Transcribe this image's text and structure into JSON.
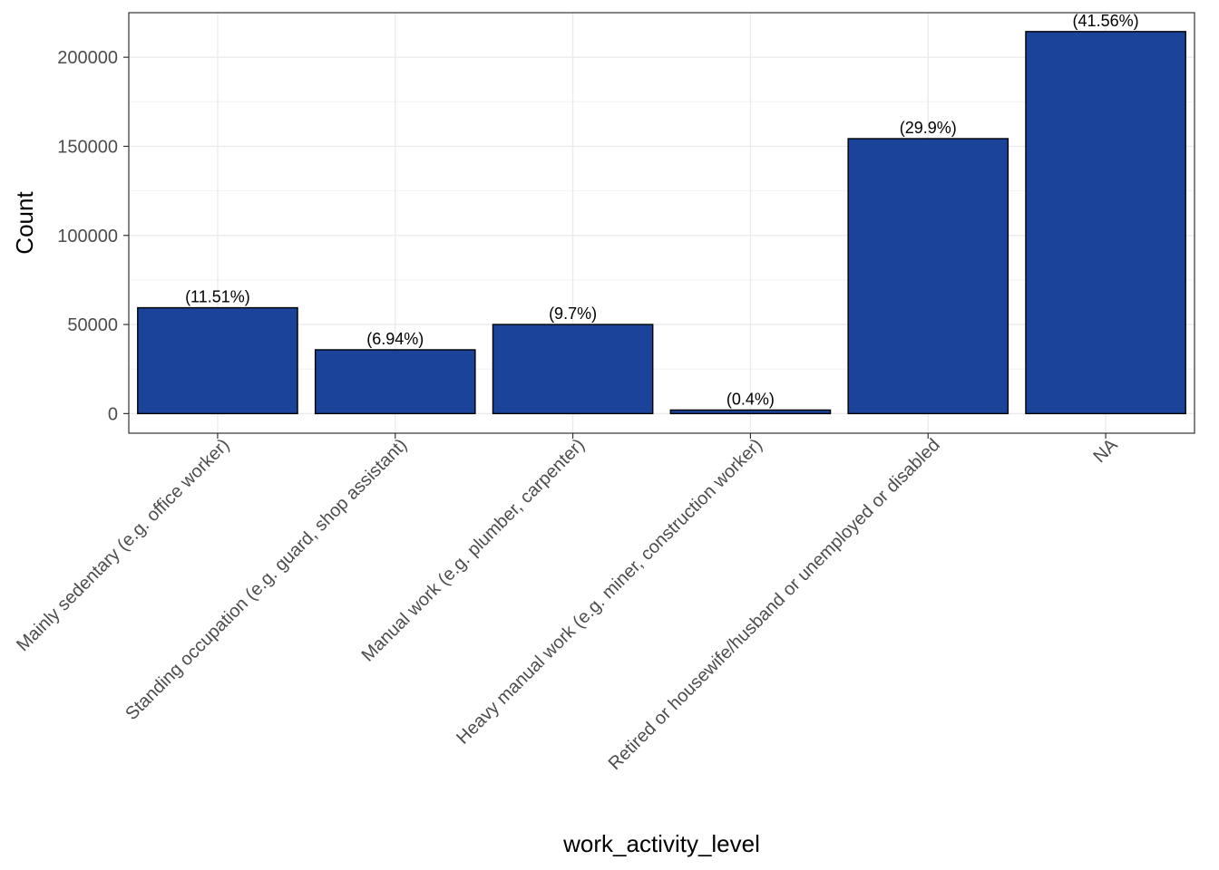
{
  "chart_data": {
    "type": "bar",
    "title": "",
    "xlabel": "work_activity_level",
    "ylabel": "Count",
    "categories": [
      "Mainly sedentary (e.g. office worker)",
      "Standing occupation (e.g. guard, shop assistant)",
      "Manual work (e.g. plumber, carpenter)",
      "Heavy manual work (e.g. miner, construction worker)",
      "Retired or housewife/husband or unemployed or disabled",
      "NA"
    ],
    "values": [
      59400,
      35800,
      50000,
      2000,
      154300,
      214400
    ],
    "data_labels": [
      "(11.51%)",
      "(6.94%)",
      "(9.7%)",
      "(0.4%)",
      "(29.9%)",
      "(41.56%)"
    ],
    "yticks": [
      0,
      50000,
      100000,
      150000,
      200000
    ],
    "ytick_labels": [
      "0",
      "50000",
      "100000",
      "150000",
      "200000"
    ],
    "ylim": [
      -11000,
      225000
    ],
    "bar_color": "#1A4399",
    "bar_outline": "#000000",
    "grid": true,
    "legend": "none"
  }
}
